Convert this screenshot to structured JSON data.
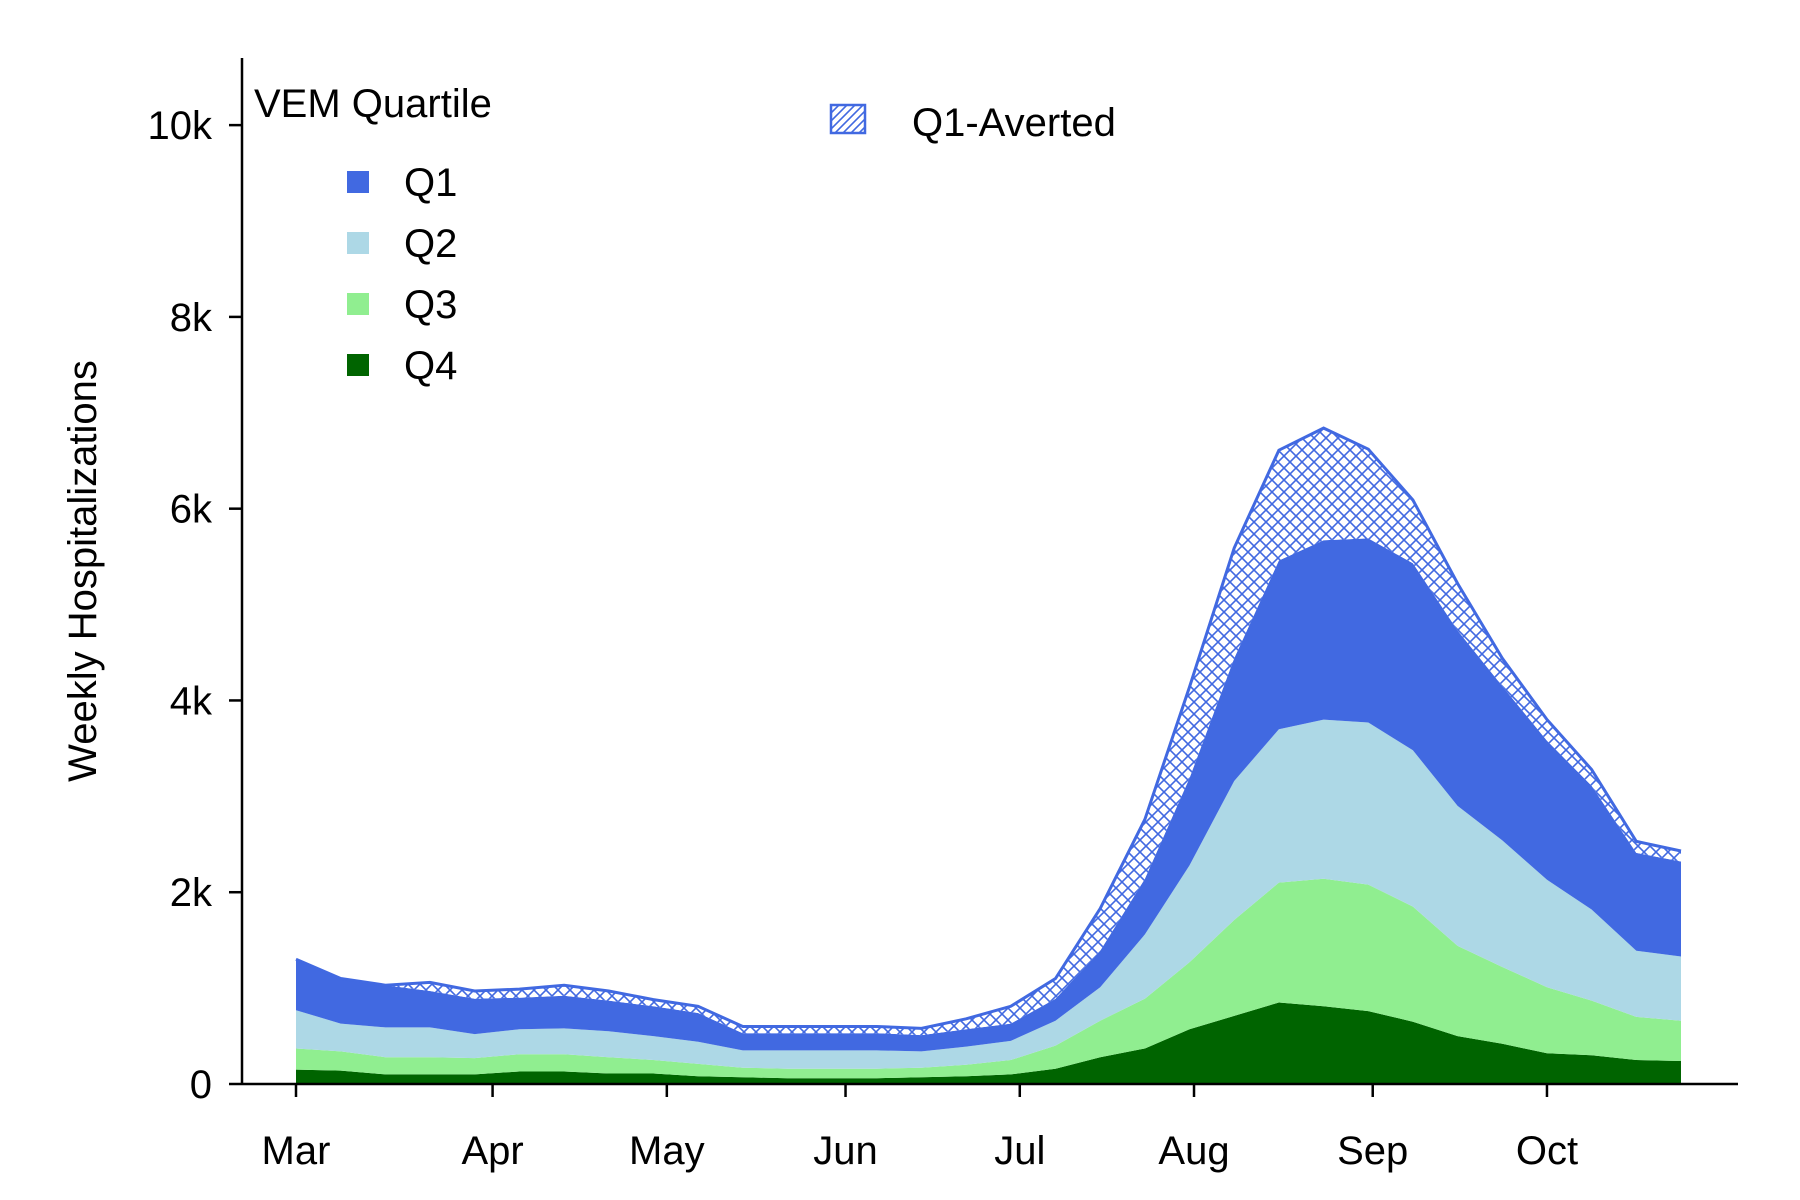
{
  "chart_data": {
    "type": "area",
    "stacked": true,
    "ylabel": "Weekly Hospitalizations",
    "xlabel": "",
    "ylim": [
      0,
      10700
    ],
    "yticks": [
      0,
      2000,
      4000,
      6000,
      8000,
      10000
    ],
    "ytick_labels": [
      "0",
      "2k",
      "4k",
      "6k",
      "8k",
      "10k"
    ],
    "x_tick_labels": [
      "Mar",
      "Apr",
      "May",
      "Jun",
      "Jul",
      "Aug",
      "Sep",
      "Oct"
    ],
    "x_tick_weeks": [
      0,
      4.4,
      8.3,
      12.3,
      16.2,
      20.1,
      24.1,
      28.0
    ],
    "x_weeks": [
      0,
      1,
      2,
      3,
      4,
      5,
      6,
      7,
      8,
      9,
      10,
      11,
      12,
      13,
      14,
      15,
      16,
      17,
      18,
      19,
      20,
      21,
      22,
      23,
      24,
      25,
      26,
      27,
      28,
      29,
      30,
      31
    ],
    "series": [
      {
        "name": "Q4",
        "color": "#006400",
        "values": [
          150,
          140,
          100,
          100,
          100,
          130,
          130,
          110,
          110,
          80,
          70,
          60,
          60,
          60,
          70,
          80,
          100,
          160,
          280,
          370,
          570,
          710,
          850,
          810,
          760,
          650,
          500,
          420,
          320,
          300,
          250,
          240
        ]
      },
      {
        "name": "Q3",
        "color": "#90ee90",
        "values": [
          220,
          200,
          180,
          180,
          170,
          180,
          180,
          170,
          140,
          130,
          100,
          100,
          100,
          100,
          100,
          120,
          150,
          240,
          380,
          520,
          700,
          1000,
          1250,
          1330,
          1320,
          1200,
          940,
          800,
          690,
          570,
          450,
          420
        ]
      },
      {
        "name": "Q2",
        "color": "#add8e6",
        "values": [
          400,
          290,
          310,
          310,
          250,
          260,
          270,
          270,
          250,
          230,
          180,
          190,
          190,
          190,
          170,
          190,
          200,
          260,
          350,
          670,
          1010,
          1450,
          1600,
          1660,
          1690,
          1630,
          1460,
          1320,
          1120,
          950,
          690,
          670
        ]
      },
      {
        "name": "Q1",
        "color": "#4169e1",
        "values": [
          530,
          470,
          440,
          380,
          370,
          330,
          340,
          320,
          310,
          300,
          180,
          180,
          180,
          180,
          170,
          180,
          180,
          230,
          380,
          580,
          910,
          1280,
          1760,
          1870,
          1920,
          1950,
          1830,
          1610,
          1450,
          1290,
          1020,
          990
        ]
      },
      {
        "name": "Q1-Averted",
        "color": "#4169e1",
        "hatched": true,
        "values": [
          0,
          0,
          0,
          90,
          80,
          90,
          110,
          100,
          70,
          70,
          70,
          70,
          70,
          70,
          70,
          110,
          180,
          210,
          440,
          620,
          950,
          1150,
          1150,
          1170,
          930,
          660,
          490,
          290,
          220,
          170,
          120,
          110
        ]
      }
    ],
    "legend": {
      "title": "VEM Quartile",
      "items": [
        "Q1",
        "Q2",
        "Q3",
        "Q4"
      ],
      "placement": "top-left",
      "extra_item": "Q1-Averted",
      "extra_placement": "top-center"
    },
    "grid": false
  }
}
